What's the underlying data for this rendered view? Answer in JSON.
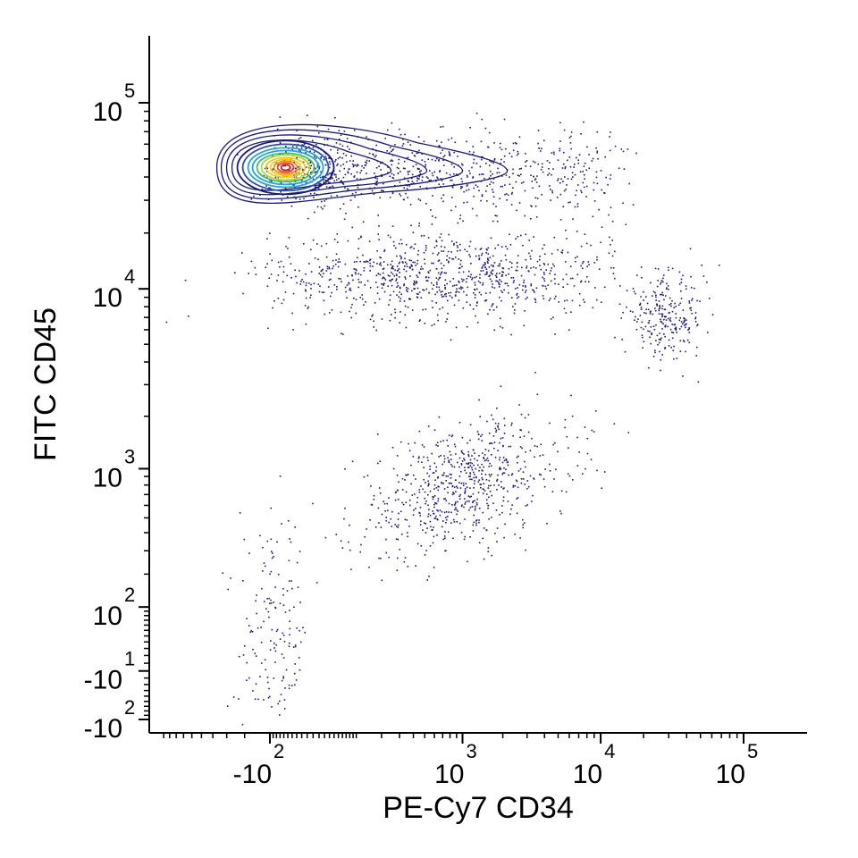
{
  "chart_data": {
    "type": "scatter",
    "subtype": "flow-cytometry-contour-dot-plot",
    "title": "",
    "xlabel": "PE-Cy7 CD34",
    "ylabel": "FITC CD45",
    "x_scale": "biexponential",
    "y_scale": "biexponential",
    "grid": false,
    "legend": "none",
    "x_ticks": [
      {
        "value": -100,
        "base": "-10",
        "exp": "2"
      },
      {
        "value": 1000,
        "base": "10",
        "exp": "3"
      },
      {
        "value": 10000,
        "base": "10",
        "exp": "4"
      },
      {
        "value": 100000,
        "base": "10",
        "exp": "5"
      }
    ],
    "y_ticks": [
      {
        "value": 100000,
        "base": "10",
        "exp": "5"
      },
      {
        "value": 10000,
        "base": "10",
        "exp": "4"
      },
      {
        "value": 1000,
        "base": "10",
        "exp": "3"
      },
      {
        "value": 100,
        "base": "10",
        "exp": "2"
      },
      {
        "value": -10,
        "base": "-10",
        "exp": "1"
      },
      {
        "value": -100,
        "base": "-10",
        "exp": "2"
      }
    ],
    "populations": [
      {
        "center": {
          "x": -60,
          "y": 45000
        },
        "relative_events": 60,
        "style": "contour"
      },
      {
        "center": {
          "x": 700,
          "y": 12000
        },
        "relative_events": 18,
        "style": "dots"
      },
      {
        "center": {
          "x": 1000,
          "y": 800
        },
        "relative_events": 14,
        "style": "dots"
      },
      {
        "center": {
          "x": 28000,
          "y": 7000
        },
        "relative_events": 5,
        "style": "dots"
      },
      {
        "center": {
          "x": -90,
          "y": 30
        },
        "relative_events": 3,
        "style": "dots"
      }
    ],
    "colors": {
      "dots": "#1a1a7a",
      "contour_outer": "#1a1a7a",
      "contour_scale": [
        "#1a1a7a",
        "#2b4fae",
        "#2aa6c9",
        "#3fbf6e",
        "#b8d62f",
        "#f2c81e",
        "#f28a1c",
        "#e2452a",
        "#c81e1e"
      ]
    }
  }
}
